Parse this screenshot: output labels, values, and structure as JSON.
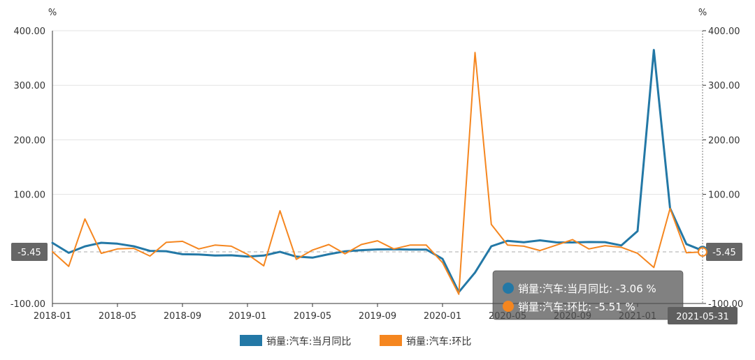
{
  "chart_data": {
    "type": "line",
    "y_unit_left": "%",
    "y_unit_right": "%",
    "ylim": [
      -100,
      400
    ],
    "yticks": [
      "400.00",
      "300.00",
      "200.00",
      "100.00",
      "-100.00"
    ],
    "yticks_right": [
      "400.00",
      "300.00",
      "200.00",
      "100.00",
      "-100.00"
    ],
    "ytick_values": [
      400,
      300,
      200,
      100,
      -100
    ],
    "x": [
      "2018-01",
      "2018-02",
      "2018-03",
      "2018-04",
      "2018-05",
      "2018-06",
      "2018-07",
      "2018-08",
      "2018-09",
      "2018-10",
      "2018-11",
      "2018-12",
      "2019-01",
      "2019-02",
      "2019-03",
      "2019-04",
      "2019-05",
      "2019-06",
      "2019-07",
      "2019-08",
      "2019-09",
      "2019-10",
      "2019-11",
      "2019-12",
      "2020-01",
      "2020-02",
      "2020-03",
      "2020-04",
      "2020-05",
      "2020-06",
      "2020-07",
      "2020-08",
      "2020-09",
      "2020-10",
      "2020-11",
      "2020-12",
      "2021-01",
      "2021-02",
      "2021-03",
      "2021-04",
      "2021-05"
    ],
    "xtick_labels": [
      "2018-01",
      "2018-05",
      "2018-09",
      "2019-01",
      "2019-05",
      "2019-09",
      "2020-01",
      "2020-05",
      "2020-09",
      "2021-01"
    ],
    "xtick_indices": [
      0,
      4,
      8,
      12,
      16,
      20,
      24,
      28,
      32,
      36
    ],
    "series": [
      {
        "name": "销量:汽车:当月同比",
        "color": "#2378a6",
        "values": [
          11.1,
          -7.2,
          4.7,
          11.2,
          9.6,
          4.8,
          -3.6,
          -4.2,
          -9.7,
          -10.1,
          -12.1,
          -11.7,
          -13.9,
          -12.1,
          -5.3,
          -14.1,
          -16.0,
          -9.7,
          -4.3,
          -2.3,
          -0.9,
          -0.5,
          -1.1,
          -1.2,
          -18.2,
          -79.1,
          -43.3,
          4.8,
          14.8,
          12.3,
          15.7,
          12.0,
          11.9,
          12.6,
          12.4,
          6.4,
          32.6,
          364.7,
          74.5,
          9.0,
          -3.06
        ]
      },
      {
        "name": "销量:汽车:环比",
        "color": "#f5861f",
        "values": [
          -5.0,
          -32.0,
          55.0,
          -8.0,
          0.0,
          1.0,
          -13.0,
          12.0,
          14.0,
          0.0,
          7.0,
          5.0,
          -10.0,
          -31.0,
          70.0,
          -19.0,
          -2.0,
          8.0,
          -9.0,
          8.0,
          15.0,
          0.0,
          7.0,
          7.0,
          -25.0,
          -83.0,
          360.0,
          45.0,
          7.0,
          5.0,
          -3.0,
          7.0,
          17.0,
          0.0,
          6.0,
          3.0,
          -8.0,
          -34.0,
          74.0,
          -7.0,
          -5.51
        ]
      }
    ],
    "reference_line": {
      "value": -5.45,
      "label": "-5.45"
    },
    "tooltip": {
      "date": "2021-05-31",
      "rows": [
        {
          "label": "销量:汽车:当月同比: -3.06 %",
          "color": "#2378a6"
        },
        {
          "label": "销量:汽车:环比: -5.51 %",
          "color": "#f5861f"
        }
      ]
    },
    "legend_placement": "bottom-center",
    "grid": "horizontal"
  }
}
